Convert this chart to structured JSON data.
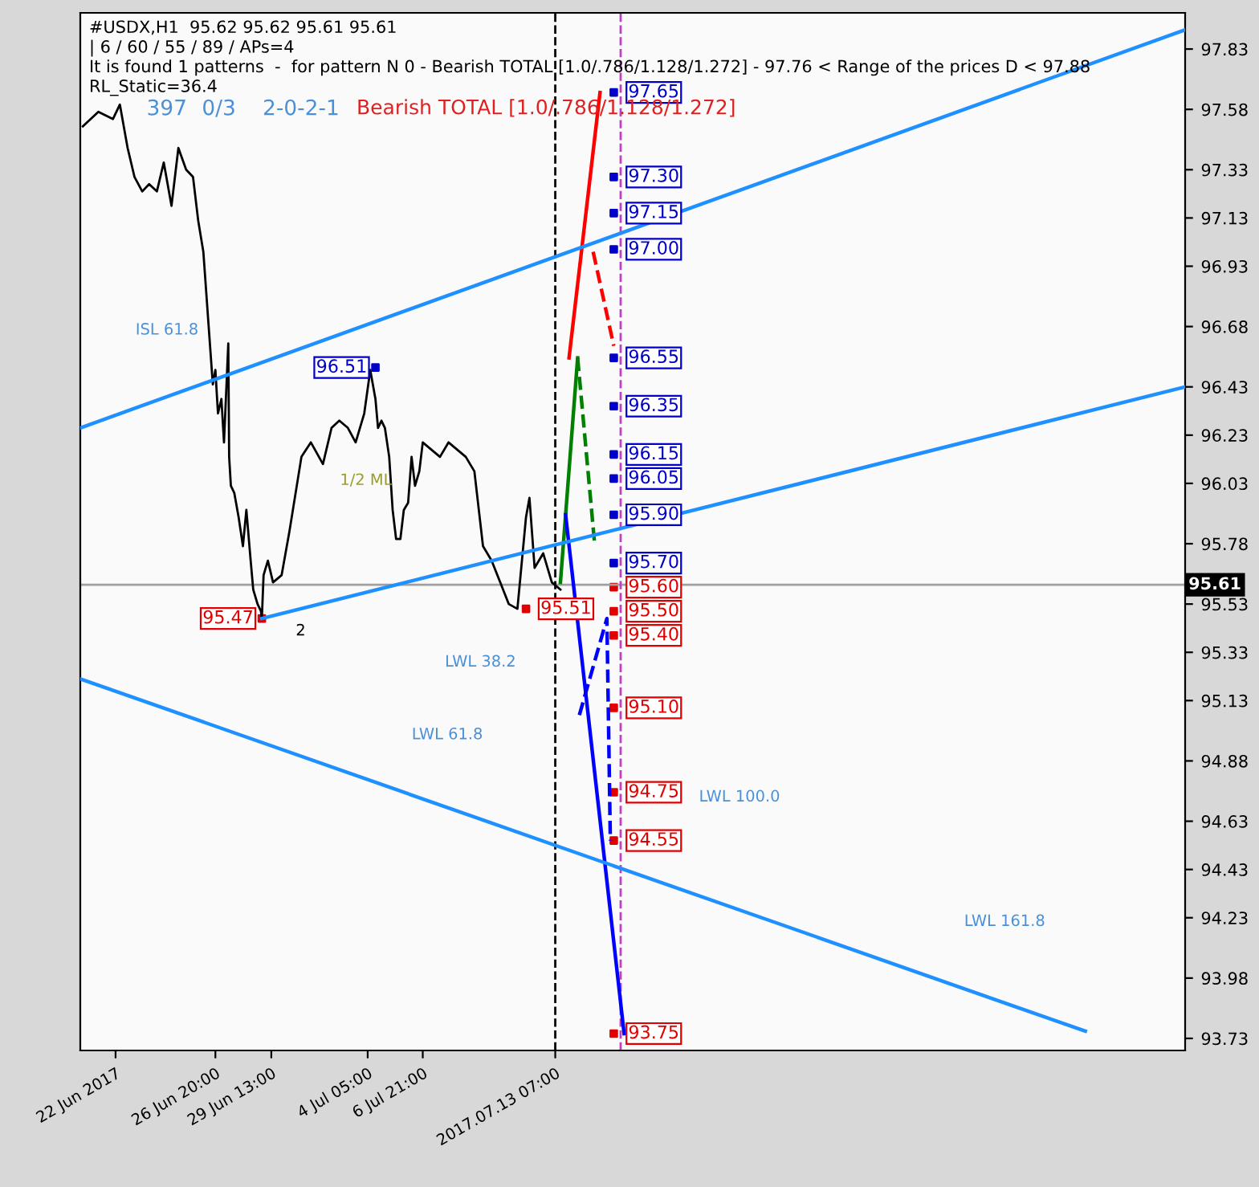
{
  "chart_data": {
    "type": "line",
    "title": "#USDX,H1  95.62 95.62 95.61 95.61",
    "subtitle": "Bearish TOTAL [1.0/.786/1.128/1.272]",
    "annotations": [
      "| 6 / 60 / 55 / 89 / APs=4",
      "It is found 1 patterns  -  for pattern N 0 - Bearish TOTAL [1.0/.786/1.128/1.272] - 97.76 < Range of the prices D < 97.88",
      "RL_Static=36.4",
      "397",
      "0/3",
      "2-0-2-1",
      "2",
      "1/2 ML",
      "LWL 38.2",
      "LWL 61.8",
      "LWL 100.0",
      "LWL 161.8",
      "ISL 61.8"
    ],
    "xlim": [
      "2017-06-20T07:00",
      "2017-08-12T19:00"
    ],
    "xticks": [
      {
        "value": "2017-06-22T00:00",
        "label": "22 Jun 2017"
      },
      {
        "value": "2017-06-26T20:00",
        "label": "26 Jun 20:00"
      },
      {
        "value": "2017-06-29T13:00",
        "label": "29 Jun 13:00"
      },
      {
        "value": "2017-07-04T05:00",
        "label": "4 Jul 05:00"
      },
      {
        "value": "2017-07-06T21:00",
        "label": "6 Jul 21:00"
      },
      {
        "value": "2017-07-13T07:00",
        "label": "2017.07.13 07:00"
      }
    ],
    "ylim": [
      93.68,
      97.98
    ],
    "yticks": [
      97.83,
      97.58,
      97.33,
      97.13,
      96.93,
      96.68,
      96.43,
      96.23,
      96.03,
      95.78,
      95.53,
      95.33,
      95.13,
      94.88,
      94.63,
      94.43,
      94.23,
      93.98,
      93.73
    ],
    "ref_lines": [
      {
        "axis": "y",
        "value": 95.61,
        "label": "95.61",
        "color": "#a0a0a0",
        "line_style": "solid"
      },
      {
        "axis": "x",
        "value": "2017-07-13T07:00",
        "color": "#000000",
        "line_style": "dashed"
      },
      {
        "axis": "x",
        "value": "2017-07-16T11:00",
        "color": "#c040c0",
        "line_style": "dashed"
      }
    ],
    "grid": false,
    "marker": "none",
    "series": [
      {
        "color": "#000000",
        "line_style": "solid",
        "x": [
          "2017-06-20T10:00",
          "2017-06-21T04:00",
          "2017-06-21T21:00",
          "2017-06-22T05:00",
          "2017-06-22T14:00",
          "2017-06-22T22:00",
          "2017-06-23T07:00",
          "2017-06-23T15:00",
          "2017-06-24T00:00",
          "2017-06-24T08:00",
          "2017-06-24T17:00",
          "2017-06-25T01:00",
          "2017-06-25T10:00",
          "2017-06-25T18:00",
          "2017-06-26T00:00",
          "2017-06-26T06:00",
          "2017-06-26T12:00",
          "2017-06-26T17:00",
          "2017-06-26T20:00",
          "2017-06-26T23:00",
          "2017-06-27T03:00",
          "2017-06-27T06:00",
          "2017-06-27T11:00",
          "2017-06-27T12:00",
          "2017-06-27T14:00",
          "2017-06-27T18:00",
          "2017-06-27T23:00",
          "2017-06-28T04:00",
          "2017-06-28T08:00",
          "2017-06-28T13:00",
          "2017-06-28T16:00",
          "2017-06-28T21:00",
          "2017-06-29T01:00",
          "2017-06-29T02:00",
          "2017-06-29T04:00",
          "2017-06-29T09:00",
          "2017-06-29T15:00",
          "2017-06-30T01:00",
          "2017-06-30T10:00",
          "2017-07-01T00:00",
          "2017-07-01T11:00",
          "2017-07-02T01:00",
          "2017-07-02T11:00",
          "2017-07-02T20:00",
          "2017-07-03T06:00",
          "2017-07-03T15:00",
          "2017-07-04T01:00",
          "2017-07-04T08:00",
          "2017-07-04T14:00",
          "2017-07-04T17:00",
          "2017-07-04T21:00",
          "2017-07-05T01:00",
          "2017-07-05T06:00",
          "2017-07-05T10:00",
          "2017-07-05T14:00",
          "2017-07-05T19:00",
          "2017-07-05T23:00",
          "2017-07-06T04:00",
          "2017-07-06T08:00",
          "2017-07-06T12:00",
          "2017-07-06T17:00",
          "2017-07-06T21:00",
          "2017-07-07T07:00",
          "2017-07-07T17:00",
          "2017-07-08T03:00",
          "2017-07-08T13:00",
          "2017-07-08T23:00",
          "2017-07-09T09:00",
          "2017-07-09T19:00",
          "2017-07-10T05:00",
          "2017-07-10T15:00",
          "2017-07-11T01:00",
          "2017-07-11T11:00",
          "2017-07-11T21:00",
          "2017-07-12T01:00",
          "2017-07-12T07:00",
          "2017-07-12T17:00",
          "2017-07-13T03:00",
          "2017-07-13T13:00"
        ],
        "values": [
          97.51,
          97.57,
          97.54,
          97.6,
          97.42,
          97.3,
          97.24,
          97.27,
          97.24,
          97.36,
          97.18,
          97.42,
          97.33,
          97.3,
          97.12,
          96.99,
          96.69,
          96.44,
          96.5,
          96.32,
          96.38,
          96.2,
          96.61,
          96.14,
          96.02,
          95.99,
          95.89,
          95.77,
          95.92,
          95.71,
          95.59,
          95.53,
          95.5,
          95.47,
          95.65,
          95.71,
          95.62,
          95.65,
          95.83,
          96.14,
          96.2,
          96.11,
          96.26,
          96.29,
          96.26,
          96.2,
          96.32,
          96.5,
          96.38,
          96.26,
          96.29,
          96.26,
          96.14,
          95.92,
          95.8,
          95.8,
          95.92,
          95.95,
          96.14,
          96.02,
          96.08,
          96.2,
          96.17,
          96.14,
          96.2,
          96.17,
          96.14,
          96.08,
          95.77,
          95.71,
          95.62,
          95.53,
          95.51,
          95.89,
          95.97,
          95.68,
          95.74,
          95.62,
          95.59
        ]
      },
      {
        "color": "#ff0000",
        "line_style": "solid",
        "x": [
          "2017-07-13T23:00",
          "2017-07-15T11:00"
        ],
        "values": [
          96.55,
          97.65
        ]
      },
      {
        "color": "#ff0000",
        "line_style": "dashed",
        "x": [
          "2017-07-15T03:00",
          "2017-07-16T03:00"
        ],
        "values": [
          96.99,
          96.6
        ]
      },
      {
        "color": "#008000",
        "line_style": "solid",
        "x": [
          "2017-07-13T13:00",
          "2017-07-14T09:00"
        ],
        "values": [
          95.62,
          96.55
        ]
      },
      {
        "color": "#008000",
        "line_style": "dashed",
        "x": [
          "2017-07-14T09:00",
          "2017-07-15T05:00"
        ],
        "values": [
          96.55,
          95.77
        ]
      },
      {
        "color": "#0000ff",
        "line_style": "solid",
        "x": [
          "2017-07-13T19:00",
          "2017-07-16T15:00"
        ],
        "values": [
          95.9,
          93.75
        ]
      },
      {
        "color": "#0000ff",
        "line_style": "dashed",
        "x": [
          "2017-07-14T11:00",
          "2017-07-15T19:00",
          "2017-07-15T23:00"
        ],
        "values": [
          95.07,
          95.47,
          94.55
        ]
      },
      {
        "color": "#1e90ff",
        "line_style": "solid",
        "x": [
          "2017-06-20T07:00",
          "2017-08-12T19:00"
        ],
        "values": [
          96.26,
          97.91
        ]
      },
      {
        "color": "#1e90ff",
        "line_style": "solid",
        "x": [
          "2017-06-29T02:00",
          "2017-08-12T19:00"
        ],
        "values": [
          95.47,
          96.43
        ]
      },
      {
        "color": "#1e90ff",
        "line_style": "solid",
        "x": [
          "2017-06-20T07:00",
          "2017-08-07T23:00"
        ],
        "values": [
          95.22,
          93.76
        ]
      },
      {
        "type": "scatter",
        "marker": "square",
        "color": "#0000c8",
        "x": [
          "2017-07-16T03:00",
          "2017-07-16T03:00",
          "2017-07-16T03:00",
          "2017-07-16T03:00",
          "2017-07-16T03:00",
          "2017-07-16T03:00",
          "2017-07-16T03:00",
          "2017-07-16T03:00",
          "2017-07-16T03:00",
          "2017-07-16T03:00",
          "2017-07-04T14:00"
        ],
        "values": [
          97.65,
          97.3,
          97.15,
          97.0,
          96.55,
          96.35,
          96.15,
          96.05,
          95.9,
          95.7,
          96.51
        ],
        "value_labels": [
          "97.65",
          "97.30",
          "97.15",
          "97.00",
          "96.55",
          "96.35",
          "96.15",
          "96.05",
          "95.90",
          "95.70",
          "96.51"
        ]
      },
      {
        "type": "scatter",
        "marker": "square",
        "color": "#e00000",
        "x": [
          "2017-07-16T03:00",
          "2017-07-16T03:00",
          "2017-07-16T03:00",
          "2017-07-16T03:00",
          "2017-07-16T03:00",
          "2017-07-16T03:00",
          "2017-07-16T03:00",
          "2017-06-29T02:00",
          "2017-07-11T21:00"
        ],
        "values": [
          95.6,
          95.5,
          95.4,
          95.1,
          94.75,
          94.55,
          93.75,
          95.47,
          95.51
        ],
        "value_labels": [
          "95.60",
          "95.50",
          "95.40",
          "95.10",
          "94.75",
          "94.55",
          "93.75",
          "95.47",
          "95.51"
        ]
      }
    ]
  }
}
